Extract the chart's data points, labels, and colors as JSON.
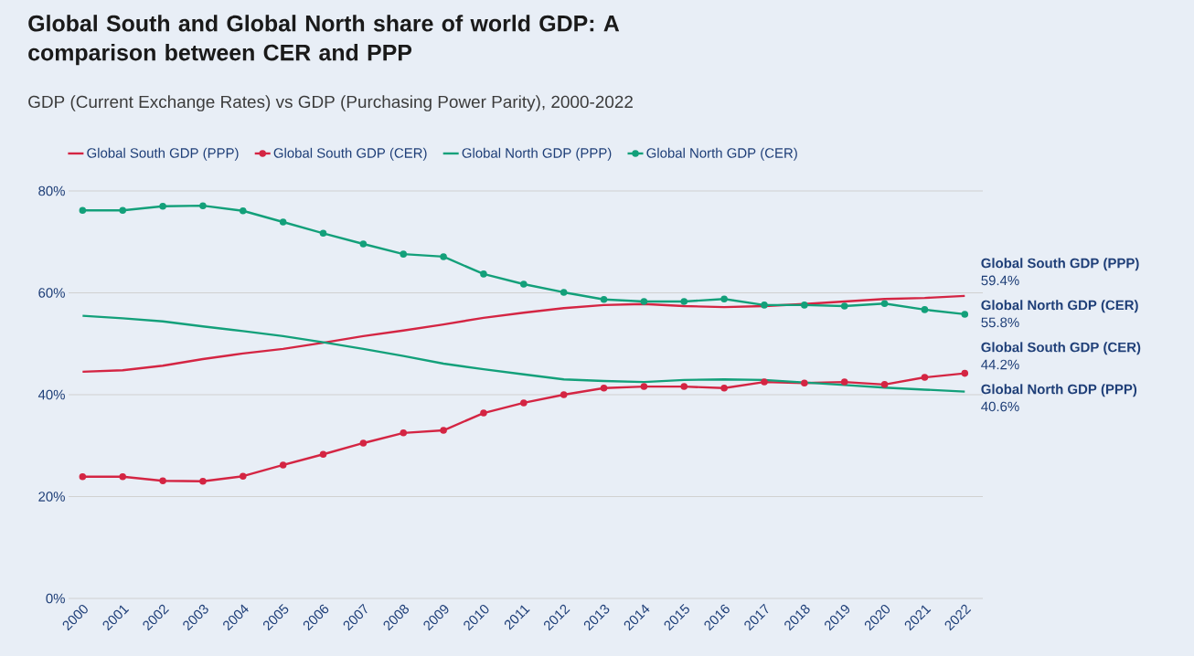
{
  "chart_data": {
    "type": "line",
    "title": "Global South and Global North share of world GDP: A comparison between CER and PPP",
    "subtitle": "GDP (Current Exchange Rates) vs GDP (Purchasing Power Parity), 2000-2022",
    "categories": [
      "2000",
      "2001",
      "2002",
      "2003",
      "2004",
      "2005",
      "2006",
      "2007",
      "2008",
      "2009",
      "2010",
      "2011",
      "2012",
      "2013",
      "2014",
      "2015",
      "2016",
      "2017",
      "2018",
      "2019",
      "2020",
      "2021",
      "2022"
    ],
    "series": [
      {
        "name": "Global South GDP (PPP)",
        "color": "#d42543",
        "marker": "none",
        "values": [
          44.5,
          44.8,
          45.7,
          47.0,
          48.1,
          49.0,
          50.2,
          51.5,
          52.6,
          53.8,
          55.1,
          56.1,
          57.0,
          57.6,
          57.8,
          57.4,
          57.2,
          57.4,
          57.8,
          58.3,
          58.8,
          59.0,
          59.4
        ],
        "value_labels": [
          null,
          null,
          null,
          null,
          null,
          null,
          null,
          null,
          null,
          null,
          null,
          null,
          null,
          null,
          null,
          null,
          null,
          null,
          null,
          null,
          null,
          null,
          "59.4%"
        ]
      },
      {
        "name": "Global South GDP (CER)",
        "color": "#d42543",
        "marker": "circle",
        "values": [
          23.9,
          23.9,
          23.1,
          23.0,
          24.0,
          26.2,
          28.3,
          30.5,
          32.5,
          33.0,
          36.4,
          38.4,
          40.0,
          41.3,
          41.6,
          41.6,
          41.3,
          42.5,
          42.3,
          42.5,
          42.0,
          43.4,
          44.2
        ],
        "value_labels": [
          null,
          null,
          null,
          null,
          null,
          null,
          null,
          null,
          null,
          null,
          null,
          null,
          null,
          null,
          null,
          null,
          null,
          null,
          null,
          null,
          null,
          null,
          "44.2%"
        ]
      },
      {
        "name": "Global North GDP (PPP)",
        "color": "#13a07a",
        "marker": "none",
        "values": [
          55.5,
          55.0,
          54.4,
          53.4,
          52.5,
          51.5,
          50.3,
          49.0,
          47.6,
          46.1,
          45.0,
          44.0,
          43.0,
          42.7,
          42.5,
          42.9,
          43.0,
          42.9,
          42.4,
          41.9,
          41.4,
          41.0,
          40.6
        ],
        "value_labels": [
          null,
          null,
          null,
          null,
          null,
          null,
          null,
          null,
          null,
          null,
          null,
          null,
          null,
          null,
          null,
          null,
          null,
          null,
          null,
          null,
          null,
          null,
          "40.6%"
        ]
      },
      {
        "name": "Global North GDP (CER)",
        "color": "#13a07a",
        "marker": "circle",
        "values": [
          76.2,
          76.2,
          77.0,
          77.1,
          76.1,
          73.9,
          71.7,
          69.6,
          67.6,
          67.1,
          63.7,
          61.7,
          60.1,
          58.7,
          58.3,
          58.3,
          58.8,
          57.6,
          57.6,
          57.4,
          57.9,
          56.7,
          55.8
        ],
        "value_labels": [
          null,
          null,
          null,
          null,
          null,
          null,
          null,
          null,
          null,
          null,
          null,
          null,
          null,
          null,
          null,
          null,
          null,
          null,
          null,
          null,
          null,
          null,
          "55.8%"
        ]
      }
    ],
    "ylim": [
      0,
      80
    ],
    "yticks": [
      {
        "value": 0,
        "label": "0%"
      },
      {
        "value": 20,
        "label": "20%"
      },
      {
        "value": 40,
        "label": "40%"
      },
      {
        "value": 60,
        "label": "60%"
      },
      {
        "value": 80,
        "label": "80%"
      }
    ],
    "grid": "y",
    "legend": "top",
    "line_style": "solid"
  }
}
